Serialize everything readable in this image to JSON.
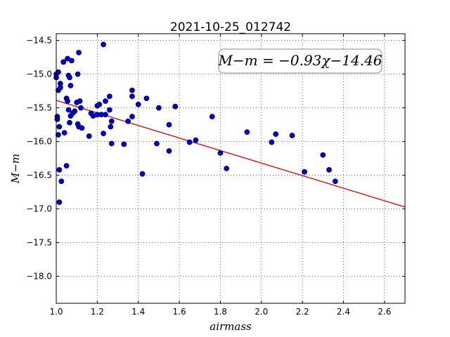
{
  "chart_data": {
    "type": "scatter",
    "title": "2021-10-25_012742",
    "xlabel": "airmass",
    "ylabel": "M−m",
    "xlim": [
      1.0,
      2.7
    ],
    "ylim": [
      -18.4,
      -14.4
    ],
    "y_inverted": true,
    "x_ticks": [
      1.0,
      1.2,
      1.4,
      1.6,
      1.8,
      2.0,
      2.2,
      2.4,
      2.6
    ],
    "x_tick_labels": [
      "1.0",
      "1.2",
      "1.4",
      "1.6",
      "1.8",
      "2.0",
      "2.2",
      "2.4",
      "2.6"
    ],
    "y_ticks": [
      -14.5,
      -15.0,
      -15.5,
      -16.0,
      -16.5,
      -17.0,
      -17.5,
      -18.0
    ],
    "y_tick_labels": [
      "−14.5",
      "−15.0",
      "−15.5",
      "−16.0",
      "−16.5",
      "−17.0",
      "−17.5",
      "−18.0"
    ],
    "grid": true,
    "annotation": "M−m = −0.93χ−14.46",
    "annotation_location": "top-right",
    "point_color": "#0000cc",
    "fit_color": "#dd0000",
    "fit": {
      "slope": -0.93,
      "intercept": -14.46
    },
    "points": [
      {
        "x": 1.0,
        "y": -15.0
      },
      {
        "x": 1.0,
        "y": -15.05
      },
      {
        "x": 1.005,
        "y": -15.63
      },
      {
        "x": 1.005,
        "y": -15.67
      },
      {
        "x": 1.01,
        "y": -15.9
      },
      {
        "x": 1.01,
        "y": -15.24
      },
      {
        "x": 1.01,
        "y": -14.97
      },
      {
        "x": 1.015,
        "y": -15.78
      },
      {
        "x": 1.015,
        "y": -16.9
      },
      {
        "x": 1.015,
        "y": -16.42
      },
      {
        "x": 1.02,
        "y": -15.14
      },
      {
        "x": 1.02,
        "y": -15.2
      },
      {
        "x": 1.025,
        "y": -16.59
      },
      {
        "x": 1.035,
        "y": -14.82
      },
      {
        "x": 1.04,
        "y": -15.87
      },
      {
        "x": 1.05,
        "y": -15.36
      },
      {
        "x": 1.05,
        "y": -16.36
      },
      {
        "x": 1.055,
        "y": -15.4
      },
      {
        "x": 1.055,
        "y": -14.77
      },
      {
        "x": 1.06,
        "y": -15.02
      },
      {
        "x": 1.06,
        "y": -15.53
      },
      {
        "x": 1.065,
        "y": -15.05
      },
      {
        "x": 1.065,
        "y": -15.72
      },
      {
        "x": 1.07,
        "y": -15.62
      },
      {
        "x": 1.07,
        "y": -15.17
      },
      {
        "x": 1.075,
        "y": -14.8
      },
      {
        "x": 1.08,
        "y": -15.58
      },
      {
        "x": 1.09,
        "y": -15.55
      },
      {
        "x": 1.1,
        "y": -15.42
      },
      {
        "x": 1.105,
        "y": -15.0
      },
      {
        "x": 1.105,
        "y": -15.74
      },
      {
        "x": 1.11,
        "y": -15.78
      },
      {
        "x": 1.11,
        "y": -14.68
      },
      {
        "x": 1.115,
        "y": -15.4
      },
      {
        "x": 1.12,
        "y": -15.5
      },
      {
        "x": 1.125,
        "y": -15.8
      },
      {
        "x": 1.16,
        "y": -15.92
      },
      {
        "x": 1.17,
        "y": -15.58
      },
      {
        "x": 1.18,
        "y": -15.62
      },
      {
        "x": 1.2,
        "y": -15.47
      },
      {
        "x": 1.2,
        "y": -15.6
      },
      {
        "x": 1.21,
        "y": -15.45
      },
      {
        "x": 1.22,
        "y": -15.6
      },
      {
        "x": 1.23,
        "y": -15.88
      },
      {
        "x": 1.23,
        "y": -14.56
      },
      {
        "x": 1.24,
        "y": -15.4
      },
      {
        "x": 1.24,
        "y": -15.6
      },
      {
        "x": 1.26,
        "y": -15.33
      },
      {
        "x": 1.26,
        "y": -15.53
      },
      {
        "x": 1.265,
        "y": -15.78
      },
      {
        "x": 1.27,
        "y": -15.7
      },
      {
        "x": 1.27,
        "y": -16.03
      },
      {
        "x": 1.33,
        "y": -16.04
      },
      {
        "x": 1.35,
        "y": -15.7
      },
      {
        "x": 1.37,
        "y": -15.63
      },
      {
        "x": 1.37,
        "y": -15.33
      },
      {
        "x": 1.37,
        "y": -15.24
      },
      {
        "x": 1.4,
        "y": -15.45
      },
      {
        "x": 1.42,
        "y": -16.48
      },
      {
        "x": 1.44,
        "y": -15.36
      },
      {
        "x": 1.49,
        "y": -16.03
      },
      {
        "x": 1.5,
        "y": -15.5
      },
      {
        "x": 1.55,
        "y": -15.75
      },
      {
        "x": 1.55,
        "y": -16.14
      },
      {
        "x": 1.58,
        "y": -15.48
      },
      {
        "x": 1.65,
        "y": -16.01
      },
      {
        "x": 1.68,
        "y": -15.98
      },
      {
        "x": 1.76,
        "y": -15.63
      },
      {
        "x": 1.8,
        "y": -16.17
      },
      {
        "x": 1.83,
        "y": -16.4
      },
      {
        "x": 1.93,
        "y": -15.86
      },
      {
        "x": 2.05,
        "y": -16.01
      },
      {
        "x": 2.07,
        "y": -15.89
      },
      {
        "x": 2.15,
        "y": -15.91
      },
      {
        "x": 2.21,
        "y": -16.45
      },
      {
        "x": 2.3,
        "y": -16.2
      },
      {
        "x": 2.33,
        "y": -16.42
      },
      {
        "x": 2.36,
        "y": -16.59
      }
    ]
  }
}
